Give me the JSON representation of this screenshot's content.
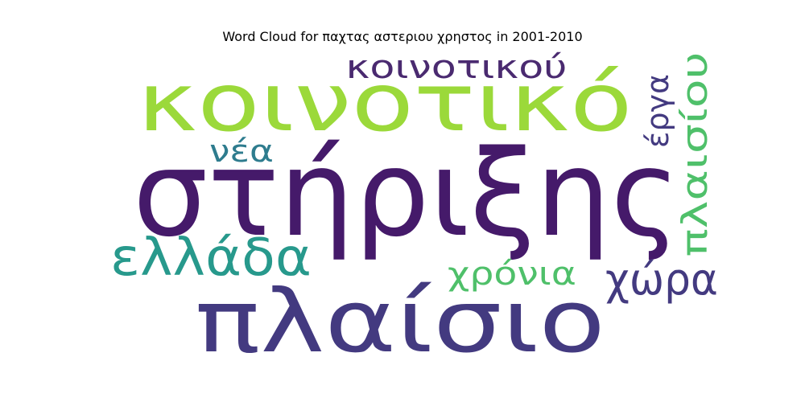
{
  "chart_data": {
    "type": "wordcloud",
    "title": "Word Cloud for παχτας αστεριου χρηστος in 2001-2010",
    "words": [
      {
        "text": "στήριξης",
        "color": "#451a6a"
      },
      {
        "text": "κοινοτικό",
        "color": "#9bd93a"
      },
      {
        "text": "πλαίσιο",
        "color": "#433a80"
      },
      {
        "text": "ελλάδα",
        "color": "#27998c"
      },
      {
        "text": "κοινοτικού",
        "color": "#4a2a70"
      },
      {
        "text": "πλαισίου",
        "color": "#4fc06a"
      },
      {
        "text": "χώρα",
        "color": "#433a80"
      },
      {
        "text": "χρόνια",
        "color": "#4fc06a"
      },
      {
        "text": "νέα",
        "color": "#2e7c8e"
      },
      {
        "text": "έργα",
        "color": "#433a80"
      }
    ]
  }
}
